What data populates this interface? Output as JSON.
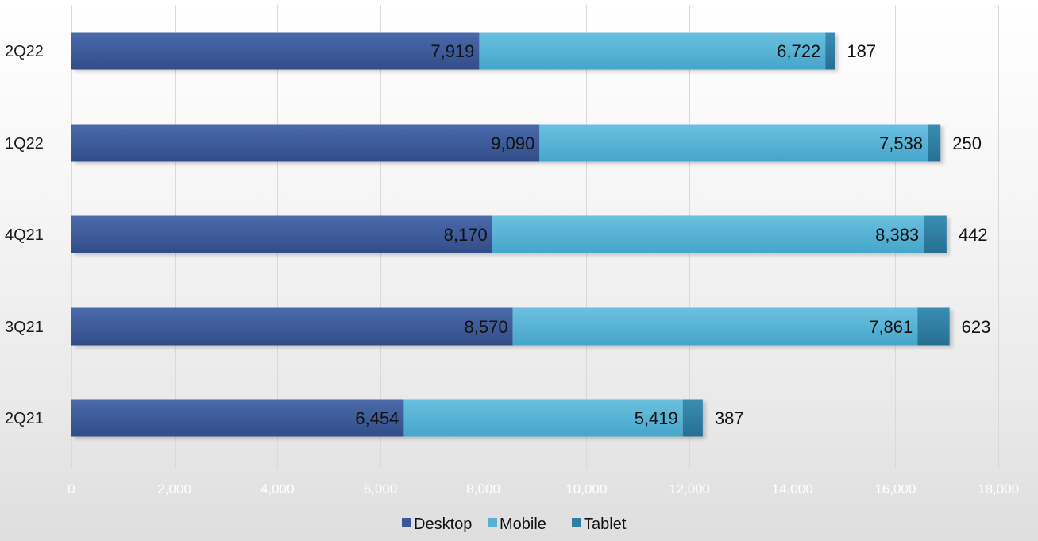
{
  "chart_data": {
    "type": "bar",
    "orientation": "horizontal",
    "stacked": true,
    "categories": [
      "2Q22",
      "1Q22",
      "4Q21",
      "3Q21",
      "2Q21"
    ],
    "series": [
      {
        "name": "Desktop",
        "values": [
          7919,
          9090,
          8170,
          8570,
          6454
        ],
        "labels": [
          "7,919",
          "9,090",
          "8,170",
          "8,570",
          "6,454"
        ],
        "color": "#3b5796"
      },
      {
        "name": "Mobile",
        "values": [
          6722,
          7538,
          8383,
          7861,
          5419
        ],
        "labels": [
          "6,722",
          "7,538",
          "8,383",
          "7,861",
          "5,419"
        ],
        "color": "#56b1d3"
      },
      {
        "name": "Tablet",
        "values": [
          187,
          250,
          442,
          623,
          387
        ],
        "labels": [
          "187",
          "250",
          "442",
          "623",
          "387"
        ],
        "color": "#2f7fa4"
      }
    ],
    "xlim": [
      0,
      18000
    ],
    "xticks": [
      0,
      2000,
      4000,
      6000,
      8000,
      10000,
      12000,
      14000,
      16000,
      18000
    ],
    "xtick_labels": [
      "0",
      "2,000",
      "4,000",
      "6,000",
      "8,000",
      "10,000",
      "12,000",
      "14,000",
      "16,000",
      "18,000"
    ],
    "grid": true,
    "legend_position": "bottom",
    "title": "",
    "xlabel": "",
    "ylabel": ""
  }
}
